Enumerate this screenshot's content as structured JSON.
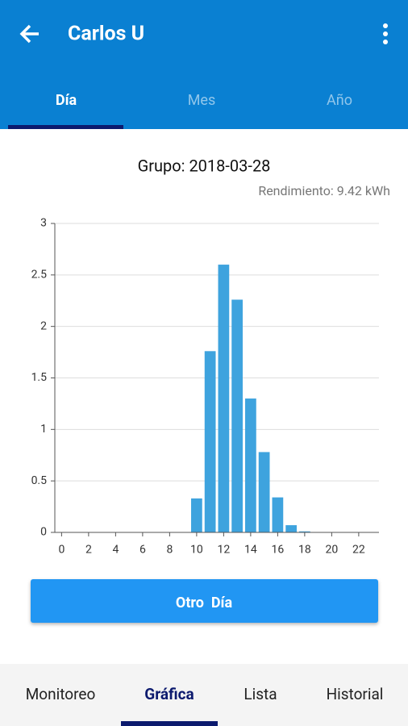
{
  "app_bar": {
    "title": "Carlos U"
  },
  "tabs": [
    "Día",
    "Mes",
    "Año"
  ],
  "chart_data": {
    "type": "bar",
    "title": "Grupo: 2018-03-28",
    "subtitle": "Rendimiento: 9.42 kWh",
    "x": [
      0,
      1,
      2,
      3,
      4,
      5,
      6,
      7,
      8,
      9,
      10,
      11,
      12,
      13,
      14,
      15,
      16,
      17,
      18,
      19,
      20,
      21,
      22,
      23
    ],
    "values": [
      0,
      0,
      0,
      0,
      0,
      0,
      0,
      0,
      0,
      0,
      0.33,
      1.76,
      2.6,
      2.26,
      1.3,
      0.78,
      0.34,
      0.07,
      0.01,
      0,
      0,
      0,
      0,
      0
    ],
    "color": "#3ea3de",
    "xlim": [
      -0.5,
      23.5
    ],
    "xticks": [
      0,
      2,
      4,
      6,
      8,
      10,
      12,
      14,
      16,
      18,
      20,
      22
    ],
    "ylim": [
      0,
      3
    ],
    "yticks": [
      0,
      0.5,
      1,
      1.5,
      2,
      2.5,
      3
    ],
    "grid": true
  },
  "button": {
    "label": "Otro  Día"
  },
  "bottom_nav": [
    "Monitoreo",
    "Gráfica",
    "Lista",
    "Historial"
  ]
}
